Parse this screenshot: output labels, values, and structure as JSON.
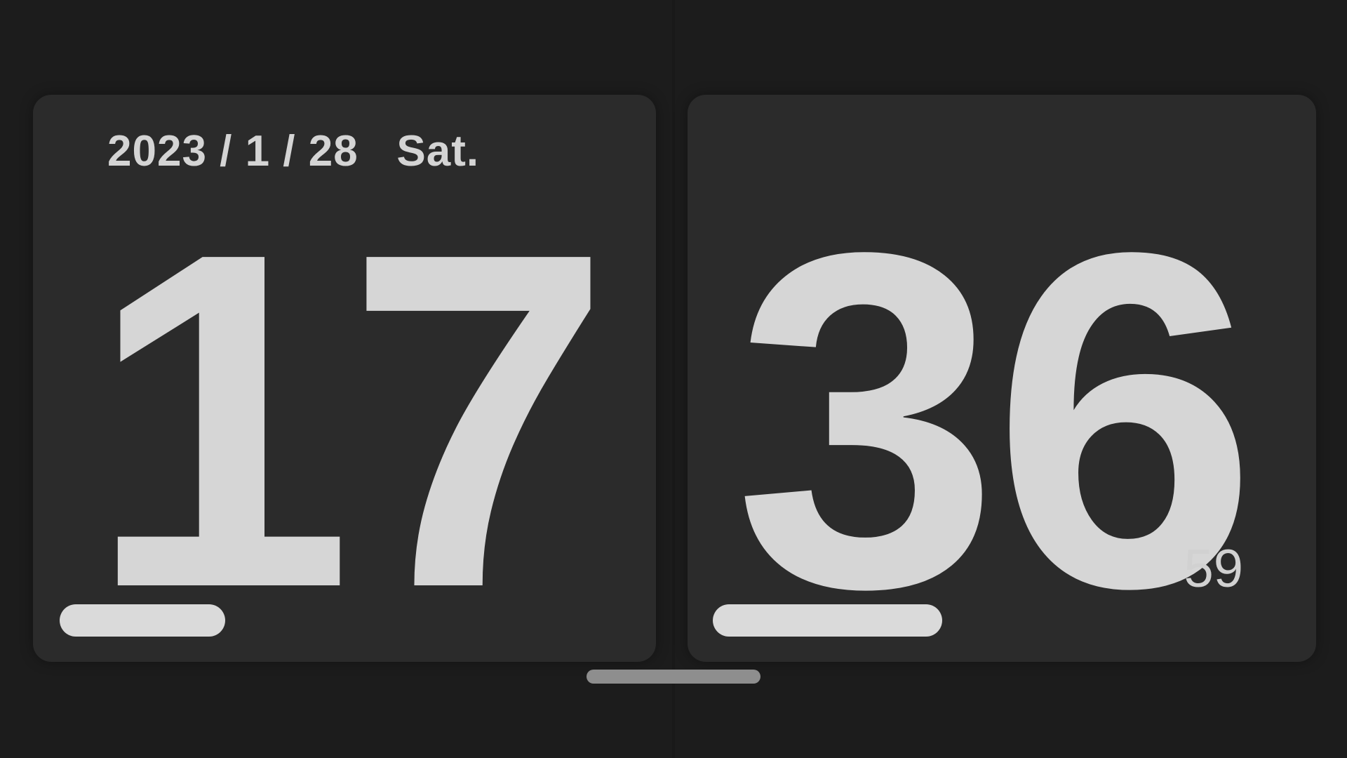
{
  "date": "2023 / 1 / 28   Sat.",
  "time": {
    "hours": "17",
    "minutes": "36",
    "seconds": "59"
  },
  "progress": {
    "hour": 0.31,
    "minute": 0.43
  },
  "colors": {
    "background": "#1c1c1c",
    "card": "#2b2b2b",
    "text": "#d6d6d6",
    "progress": "#dadada",
    "home_indicator": "#8e8e8e"
  }
}
